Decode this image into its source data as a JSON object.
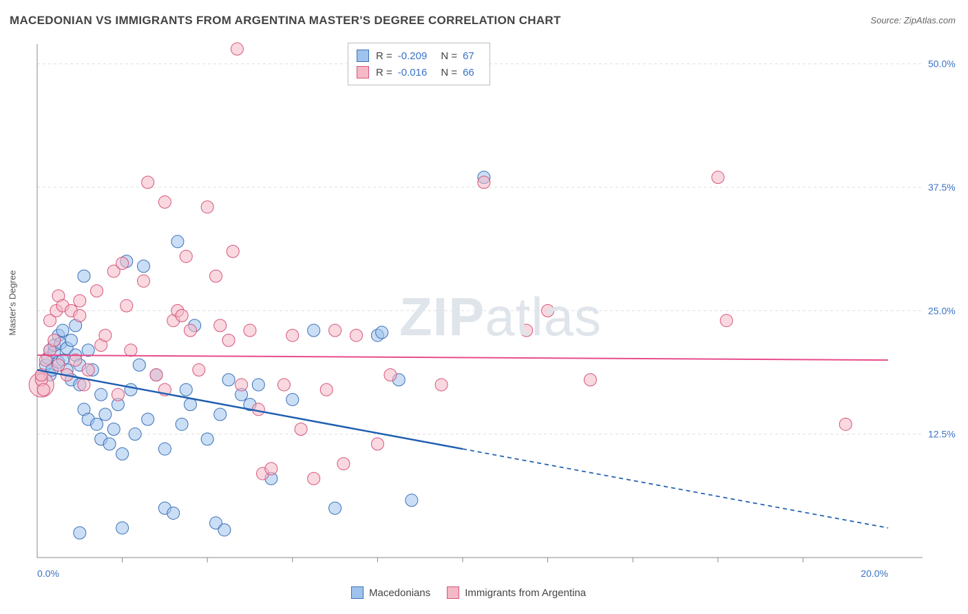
{
  "title": "MACEDONIAN VS IMMIGRANTS FROM ARGENTINA MASTER'S DEGREE CORRELATION CHART",
  "source_label": "Source:",
  "source_name": "ZipAtlas.com",
  "y_axis_label": "Master's Degree",
  "watermark_a": "ZIP",
  "watermark_b": "atlas",
  "chart": {
    "type": "scatter",
    "xlim": [
      0,
      20
    ],
    "ylim": [
      0,
      52
    ],
    "x_ticks": [
      0,
      20
    ],
    "x_tick_labels": [
      "0.0%",
      "20.0%"
    ],
    "x_minor_ticks": [
      2,
      4,
      6,
      8,
      10,
      12,
      14,
      16,
      18
    ],
    "y_ticks": [
      12.5,
      25.0,
      37.5,
      50.0
    ],
    "y_tick_labels": [
      "12.5%",
      "25.0%",
      "37.5%",
      "50.0%"
    ],
    "grid_color": "#dddddd",
    "axis_color": "#888888",
    "background_color": "#ffffff",
    "tick_label_color": "#3b72c4",
    "tick_label_fontsize": 14,
    "point_radius": 9,
    "point_radius_large": 18,
    "series": [
      {
        "name": "Macedonians",
        "fill": "#9fc3ec",
        "fill_opacity": 0.55,
        "stroke": "#3a6fb7",
        "stroke_width": 1,
        "r_value": "-0.209",
        "n_value": "67",
        "trend": {
          "color": "#1f5fb0",
          "width": 2.5,
          "start": [
            0,
            19.0
          ],
          "solid_end": [
            10,
            11.0
          ],
          "dash_end": [
            20,
            3.0
          ]
        },
        "points": [
          [
            0.2,
            19.5
          ],
          [
            0.25,
            20.2
          ],
          [
            0.3,
            21.0
          ],
          [
            0.3,
            18.5
          ],
          [
            0.35,
            19.0
          ],
          [
            0.4,
            20.8
          ],
          [
            0.4,
            21.5
          ],
          [
            0.5,
            22.5
          ],
          [
            0.5,
            19.8
          ],
          [
            0.55,
            21.7
          ],
          [
            0.6,
            23.0
          ],
          [
            0.6,
            20.0
          ],
          [
            0.7,
            21.2
          ],
          [
            0.7,
            19.0
          ],
          [
            0.8,
            18.0
          ],
          [
            0.8,
            22.0
          ],
          [
            0.9,
            20.5
          ],
          [
            0.9,
            23.5
          ],
          [
            1.0,
            19.5
          ],
          [
            1.0,
            17.5
          ],
          [
            1.1,
            28.5
          ],
          [
            1.1,
            15.0
          ],
          [
            1.2,
            14.0
          ],
          [
            1.2,
            21.0
          ],
          [
            1.3,
            19.0
          ],
          [
            1.4,
            13.5
          ],
          [
            1.5,
            12.0
          ],
          [
            1.5,
            16.5
          ],
          [
            1.6,
            14.5
          ],
          [
            1.7,
            11.5
          ],
          [
            1.8,
            13.0
          ],
          [
            1.9,
            15.5
          ],
          [
            2.0,
            10.5
          ],
          [
            2.0,
            3.0
          ],
          [
            2.1,
            30.0
          ],
          [
            2.2,
            17.0
          ],
          [
            2.3,
            12.5
          ],
          [
            2.5,
            29.5
          ],
          [
            2.6,
            14.0
          ],
          [
            2.8,
            18.5
          ],
          [
            3.0,
            11.0
          ],
          [
            3.0,
            5.0
          ],
          [
            3.2,
            4.5
          ],
          [
            3.3,
            32.0
          ],
          [
            3.4,
            13.5
          ],
          [
            3.5,
            17.0
          ],
          [
            3.6,
            15.5
          ],
          [
            3.7,
            23.5
          ],
          [
            4.0,
            12.0
          ],
          [
            4.2,
            3.5
          ],
          [
            4.3,
            14.5
          ],
          [
            4.4,
            2.8
          ],
          [
            4.5,
            18.0
          ],
          [
            4.8,
            16.5
          ],
          [
            5.0,
            15.5
          ],
          [
            5.2,
            17.5
          ],
          [
            5.5,
            8.0
          ],
          [
            6.0,
            16.0
          ],
          [
            6.5,
            23.0
          ],
          [
            7.0,
            5.0
          ],
          [
            8.0,
            22.5
          ],
          [
            8.1,
            22.8
          ],
          [
            8.5,
            18.0
          ],
          [
            8.8,
            5.8
          ],
          [
            10.5,
            38.5
          ],
          [
            1.0,
            2.5
          ],
          [
            2.4,
            19.5
          ]
        ]
      },
      {
        "name": "Immigrants from Argentina",
        "fill": "#f4b8c6",
        "fill_opacity": 0.55,
        "stroke": "#d6547a",
        "stroke_width": 1,
        "r_value": "-0.016",
        "n_value": "66",
        "trend": {
          "color": "#e84b8a",
          "width": 2,
          "start": [
            0,
            20.5
          ],
          "solid_end": [
            20,
            20.0
          ],
          "dash_end": null
        },
        "points": [
          [
            0.1,
            18.0
          ],
          [
            0.2,
            20.0
          ],
          [
            0.3,
            21.0
          ],
          [
            0.3,
            24.0
          ],
          [
            0.4,
            22.0
          ],
          [
            0.45,
            25.0
          ],
          [
            0.5,
            26.5
          ],
          [
            0.5,
            19.5
          ],
          [
            0.6,
            25.5
          ],
          [
            0.7,
            18.5
          ],
          [
            0.8,
            25.0
          ],
          [
            0.9,
            20.0
          ],
          [
            1.0,
            24.5
          ],
          [
            1.0,
            26.0
          ],
          [
            1.1,
            17.5
          ],
          [
            1.2,
            19.0
          ],
          [
            1.4,
            27.0
          ],
          [
            1.5,
            21.5
          ],
          [
            1.6,
            22.5
          ],
          [
            1.8,
            29.0
          ],
          [
            1.9,
            16.5
          ],
          [
            2.0,
            29.8
          ],
          [
            2.1,
            25.5
          ],
          [
            2.2,
            21.0
          ],
          [
            2.5,
            28.0
          ],
          [
            2.6,
            38.0
          ],
          [
            2.8,
            18.5
          ],
          [
            3.0,
            36.0
          ],
          [
            3.0,
            17.0
          ],
          [
            3.2,
            24.0
          ],
          [
            3.3,
            25.0
          ],
          [
            3.5,
            30.5
          ],
          [
            3.6,
            23.0
          ],
          [
            3.8,
            19.0
          ],
          [
            4.0,
            35.5
          ],
          [
            4.2,
            28.5
          ],
          [
            4.3,
            23.5
          ],
          [
            4.5,
            22.0
          ],
          [
            4.7,
            51.5
          ],
          [
            4.8,
            17.5
          ],
          [
            5.0,
            23.0
          ],
          [
            5.2,
            15.0
          ],
          [
            5.3,
            8.5
          ],
          [
            5.5,
            9.0
          ],
          [
            5.8,
            17.5
          ],
          [
            6.0,
            22.5
          ],
          [
            6.2,
            13.0
          ],
          [
            6.5,
            8.0
          ],
          [
            6.8,
            17.0
          ],
          [
            7.0,
            23.0
          ],
          [
            7.2,
            9.5
          ],
          [
            7.5,
            22.5
          ],
          [
            8.0,
            11.5
          ],
          [
            8.3,
            18.5
          ],
          [
            9.5,
            17.5
          ],
          [
            10.5,
            38.0
          ],
          [
            11.5,
            23.0
          ],
          [
            12.0,
            25.0
          ],
          [
            13.0,
            18.0
          ],
          [
            16.0,
            38.5
          ],
          [
            16.2,
            24.0
          ],
          [
            19.0,
            13.5
          ],
          [
            0.1,
            18.5
          ],
          [
            0.15,
            17.0
          ],
          [
            3.4,
            24.5
          ],
          [
            4.6,
            31.0
          ]
        ],
        "large_points": [
          [
            0.1,
            17.5
          ]
        ]
      }
    ],
    "legend_bottom": {
      "items": [
        {
          "label": "Macedonians",
          "fill": "#9fc3ec",
          "stroke": "#3a6fb7"
        },
        {
          "label": "Immigrants from Argentina",
          "fill": "#f4b8c6",
          "stroke": "#d6547a"
        }
      ]
    }
  }
}
